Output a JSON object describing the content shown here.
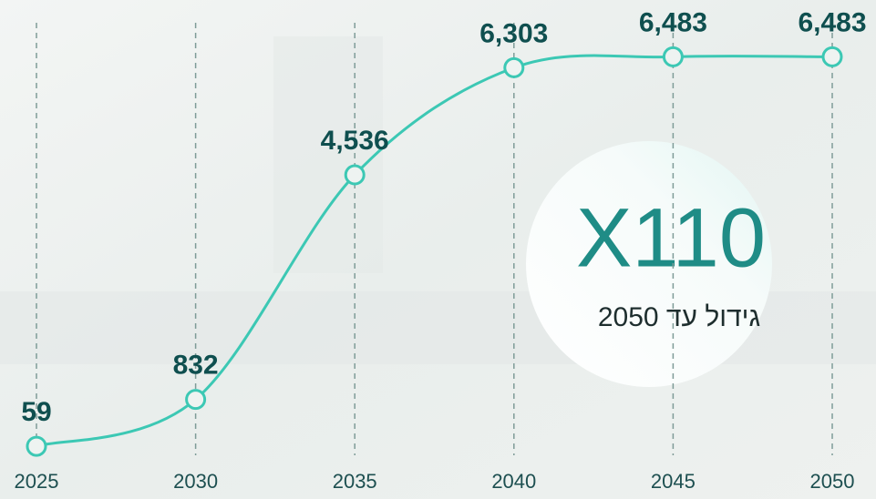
{
  "chart_data": {
    "type": "line",
    "x": [
      2025,
      2030,
      2035,
      2040,
      2045,
      2050
    ],
    "xlim": [
      2025,
      2050
    ],
    "xticks": [
      2025,
      2030,
      2035,
      2040,
      2045,
      2050
    ],
    "series": [
      {
        "color": "#3cc8b4",
        "values": [
          59,
          832,
          4536,
          6303,
          6483,
          6483
        ],
        "value_labels": [
          "59",
          "832",
          "4,536",
          "6,303",
          "6,483",
          "6,483"
        ]
      }
    ],
    "ylim": [
      0,
      7000
    ],
    "grid": true,
    "annotation": "X110",
    "annotation_subtitle": "גידול עד 2050"
  }
}
